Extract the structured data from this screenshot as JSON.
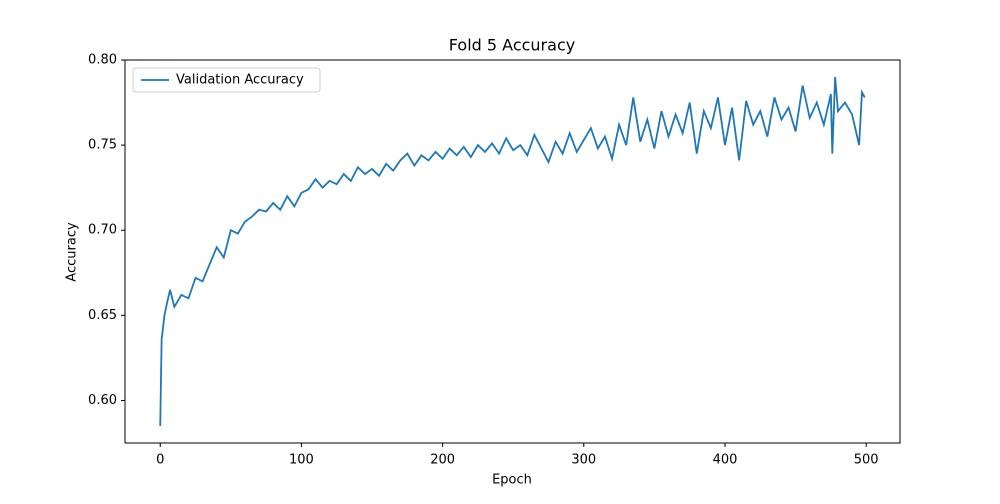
{
  "chart_data": {
    "type": "line",
    "title": "Fold 5 Accuracy",
    "xlabel": "Epoch",
    "ylabel": "Accuracy",
    "x": [
      0,
      1,
      2,
      3,
      5,
      7,
      10,
      15,
      20,
      25,
      30,
      35,
      40,
      45,
      50,
      55,
      60,
      65,
      70,
      75,
      80,
      85,
      90,
      95,
      100,
      105,
      110,
      115,
      120,
      125,
      130,
      135,
      140,
      145,
      150,
      155,
      160,
      165,
      170,
      175,
      180,
      185,
      190,
      195,
      200,
      205,
      210,
      215,
      220,
      225,
      230,
      235,
      240,
      245,
      250,
      255,
      260,
      265,
      270,
      275,
      280,
      285,
      290,
      295,
      300,
      305,
      310,
      315,
      320,
      325,
      330,
      335,
      340,
      345,
      350,
      355,
      360,
      365,
      370,
      375,
      380,
      385,
      390,
      395,
      400,
      405,
      410,
      415,
      420,
      425,
      430,
      435,
      440,
      445,
      450,
      455,
      460,
      465,
      470,
      475,
      476,
      478,
      480,
      485,
      490,
      495,
      497,
      499
    ],
    "series": [
      {
        "name": "Validation Accuracy",
        "color": "#1f77b4",
        "values": [
          0.585,
          0.636,
          0.643,
          0.65,
          0.658,
          0.665,
          0.655,
          0.662,
          0.66,
          0.672,
          0.67,
          0.68,
          0.69,
          0.684,
          0.7,
          0.698,
          0.705,
          0.708,
          0.712,
          0.711,
          0.716,
          0.712,
          0.72,
          0.714,
          0.722,
          0.724,
          0.73,
          0.725,
          0.729,
          0.727,
          0.733,
          0.729,
          0.737,
          0.733,
          0.736,
          0.732,
          0.739,
          0.735,
          0.741,
          0.745,
          0.738,
          0.744,
          0.741,
          0.746,
          0.742,
          0.748,
          0.744,
          0.749,
          0.743,
          0.75,
          0.746,
          0.751,
          0.745,
          0.754,
          0.747,
          0.75,
          0.744,
          0.756,
          0.748,
          0.74,
          0.752,
          0.745,
          0.757,
          0.746,
          0.753,
          0.76,
          0.748,
          0.755,
          0.742,
          0.762,
          0.75,
          0.778,
          0.752,
          0.765,
          0.748,
          0.77,
          0.755,
          0.768,
          0.757,
          0.775,
          0.745,
          0.77,
          0.76,
          0.778,
          0.75,
          0.772,
          0.741,
          0.776,
          0.762,
          0.77,
          0.755,
          0.778,
          0.765,
          0.772,
          0.758,
          0.785,
          0.766,
          0.775,
          0.762,
          0.78,
          0.745,
          0.79,
          0.77,
          0.775,
          0.768,
          0.75,
          0.781,
          0.778
        ]
      }
    ],
    "xlim": [
      -24.95,
      523.95
    ],
    "xticks": [
      0,
      100,
      200,
      300,
      400,
      500
    ],
    "ylim": [
      0.575,
      0.8
    ],
    "yticks": [
      {
        "value": 0.6,
        "label": "0.60"
      },
      {
        "value": 0.65,
        "label": "0.65"
      },
      {
        "value": 0.7,
        "label": "0.70"
      },
      {
        "value": 0.75,
        "label": "0.75"
      },
      {
        "value": 0.8,
        "label": "0.80"
      }
    ],
    "grid": false,
    "legend": "upper left"
  }
}
